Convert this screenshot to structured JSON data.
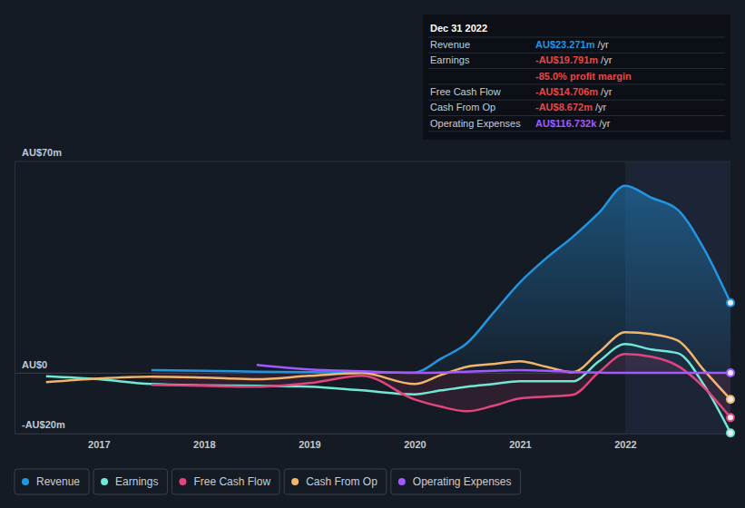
{
  "chart_data": {
    "type": "line",
    "x": [
      2016.5,
      2017.0,
      2017.5,
      2018.0,
      2018.5,
      2019.0,
      2019.5,
      2020.0,
      2020.25,
      2020.5,
      2020.75,
      2021.0,
      2021.25,
      2021.5,
      2021.75,
      2022.0,
      2022.25,
      2022.5,
      2022.75,
      2023.0
    ],
    "xlim": [
      2016.2,
      2023.0
    ],
    "xticks": [
      2017,
      2018,
      2019,
      2020,
      2021,
      2022
    ],
    "ylim": [
      -20,
      70
    ],
    "yticks": [
      {
        "value": -20,
        "label": "-AU$20m"
      },
      {
        "value": 0,
        "label": "AU$0"
      },
      {
        "value": 70,
        "label": "AU$70m"
      }
    ],
    "grid": true,
    "legend": "bottom-left",
    "series": [
      {
        "name": "Revenue",
        "color": "#2394df",
        "values": [
          null,
          null,
          1.0,
          0.8,
          0.5,
          0.3,
          0.2,
          0.2,
          4.8,
          10,
          20,
          30,
          38,
          45,
          53,
          62,
          58,
          54,
          41,
          23.271
        ]
      },
      {
        "name": "Earnings",
        "color": "#71e7d6",
        "values": [
          -1,
          -2,
          -3.6,
          -4,
          -4.2,
          -4.5,
          -5.7,
          -7,
          -5.7,
          -4.5,
          -3.6,
          -2.7,
          -2.7,
          -2.7,
          3.9,
          9.6,
          7.8,
          6.6,
          -4,
          -19.791
        ]
      },
      {
        "name": "Free Cash Flow",
        "color": "#e2457e",
        "values": [
          null,
          null,
          -3.9,
          -4.2,
          -4.5,
          -3.3,
          -0.9,
          -8.7,
          -11.1,
          -12.6,
          -10.8,
          -8.4,
          -7.8,
          -7.2,
          0.3,
          6.3,
          5.4,
          2.4,
          -4.8,
          -14.706
        ]
      },
      {
        "name": "Cash From Op",
        "color": "#f2b56b",
        "values": [
          -3,
          -1.8,
          -1.2,
          -1.5,
          -2,
          -0.9,
          0,
          -3.6,
          -0.6,
          2.1,
          3,
          3.9,
          2.1,
          0.3,
          6.9,
          13.5,
          12.9,
          10.8,
          0.9,
          -8.672
        ]
      },
      {
        "name": "Operating Expenses",
        "color": "#a259ff",
        "values": [
          null,
          null,
          null,
          null,
          2.7,
          1.2,
          0.6,
          0.1,
          0.2,
          0.5,
          0.8,
          1.0,
          0.8,
          0.4,
          0.2,
          0.1,
          0.1,
          0.1,
          0.1,
          0.116732
        ]
      }
    ],
    "annotation": {
      "title": "Dec 31 2022",
      "rows": [
        {
          "label": "Revenue",
          "value": "AU$23.271m",
          "unit": "/yr"
        },
        {
          "label": "Earnings",
          "value": "-AU$19.791m",
          "unit": "/yr"
        },
        {
          "value": "-85.0% profit margin"
        },
        {
          "label": "Free Cash Flow",
          "value": "-AU$14.706m",
          "unit": "/yr"
        },
        {
          "label": "Cash From Op",
          "value": "-AU$8.672m",
          "unit": "/yr"
        },
        {
          "label": "Operating Expenses",
          "value": "AU$116.732k",
          "unit": "/yr"
        }
      ]
    }
  }
}
